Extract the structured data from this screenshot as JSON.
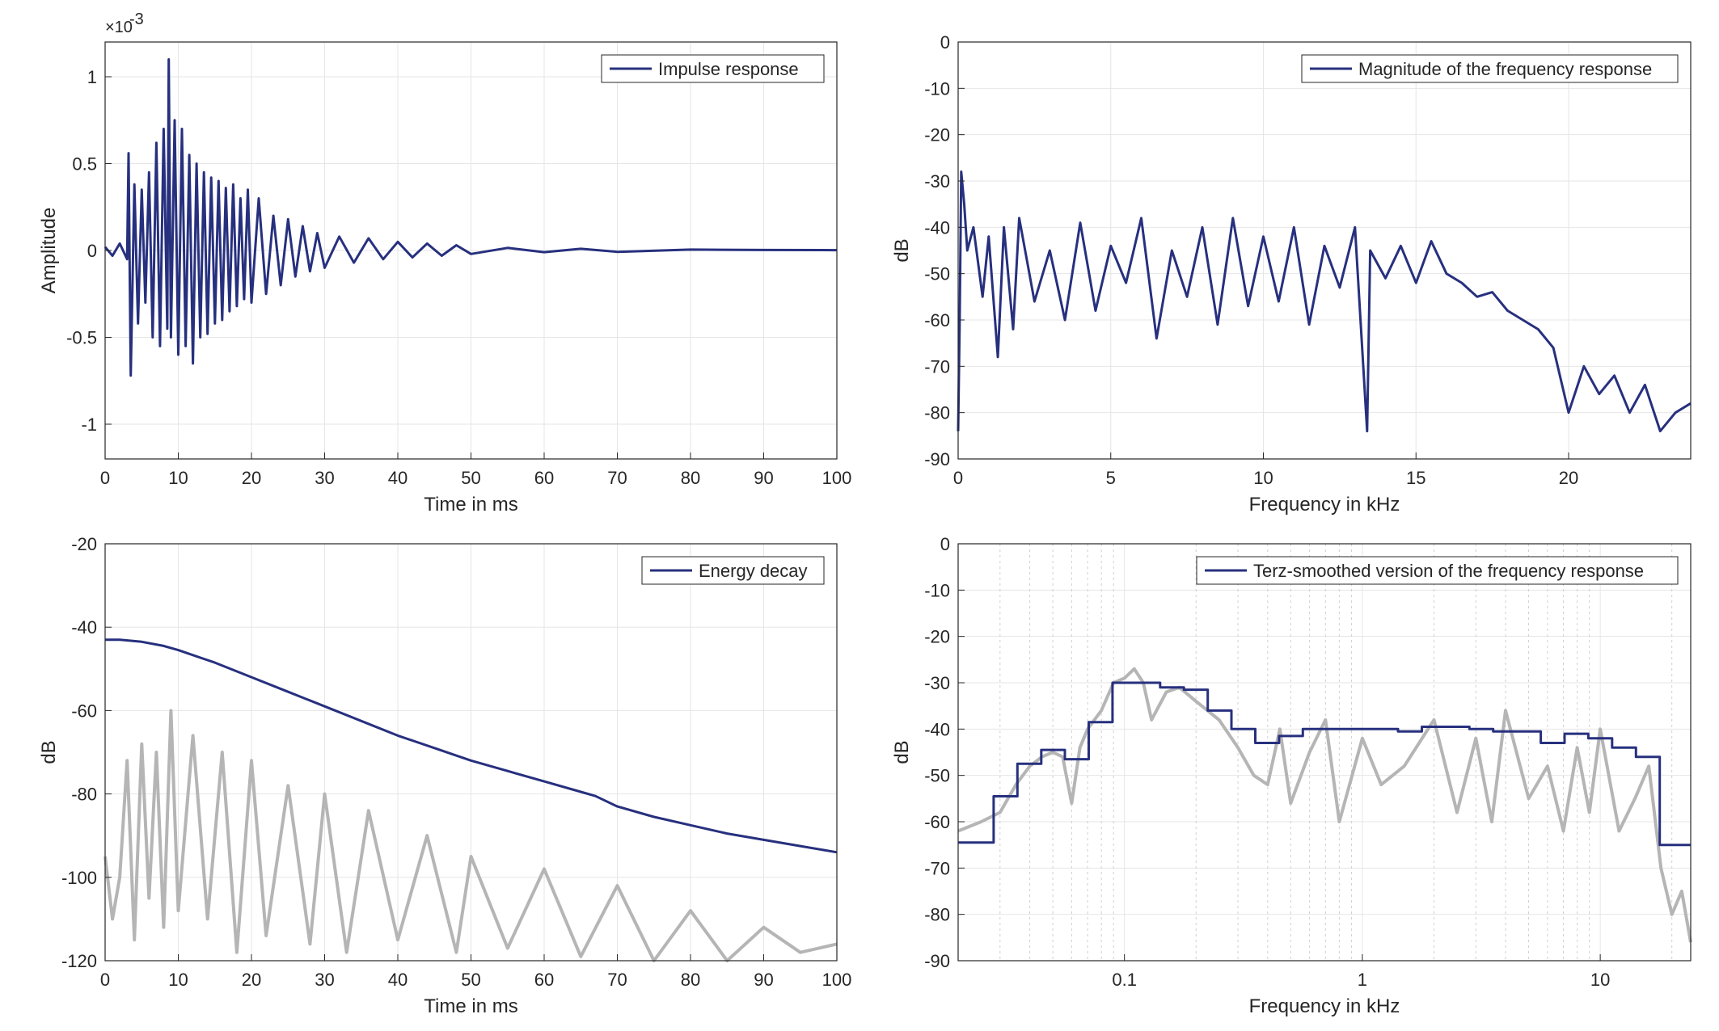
{
  "colors": {
    "series": "#27307e",
    "background_trace": "#b5b5b5",
    "grid": "#e6e6e6",
    "axis": "#262626"
  },
  "chart_data": [
    {
      "type": "line",
      "title": "",
      "xlabel": "Time in ms",
      "ylabel": "Amplitude",
      "exponent_label": "×10",
      "exponent_power": "-3",
      "xlim": [
        0,
        100
      ],
      "ylim": [
        -1.2,
        1.2
      ],
      "xticks": [
        0,
        10,
        20,
        30,
        40,
        50,
        60,
        70,
        80,
        90,
        100
      ],
      "xtick_labels": [
        "0",
        "10",
        "20",
        "30",
        "40",
        "50",
        "60",
        "70",
        "80",
        "90",
        "100"
      ],
      "yticks": [
        -1,
        -0.5,
        0,
        0.5,
        1
      ],
      "ytick_labels": [
        "-1",
        "-0.5",
        "0",
        "0.5",
        "1"
      ],
      "grid": true,
      "legend_position": "top-right",
      "series": [
        {
          "name": "Impulse response",
          "x": [
            0,
            1,
            2,
            3,
            3.2,
            3.5,
            4,
            4.5,
            5,
            5.5,
            6,
            6.5,
            7,
            7.5,
            8,
            8.5,
            8.7,
            9,
            9.5,
            10,
            10.5,
            11,
            11.5,
            12,
            12.5,
            13,
            13.5,
            14,
            14.5,
            15,
            15.5,
            16,
            16.5,
            17,
            17.5,
            18,
            18.5,
            19,
            19.5,
            20,
            21,
            22,
            23,
            24,
            25,
            26,
            27,
            28,
            29,
            30,
            32,
            34,
            36,
            38,
            40,
            42,
            44,
            46,
            48,
            50,
            55,
            60,
            65,
            70,
            80,
            90,
            100
          ],
          "y": [
            0.02,
            -0.03,
            0.04,
            -0.05,
            0.56,
            -0.72,
            0.38,
            -0.42,
            0.35,
            -0.3,
            0.45,
            -0.5,
            0.62,
            -0.55,
            0.7,
            -0.45,
            1.1,
            -0.5,
            0.75,
            -0.6,
            0.7,
            -0.55,
            0.55,
            -0.65,
            0.5,
            -0.5,
            0.45,
            -0.48,
            0.42,
            -0.42,
            0.4,
            -0.4,
            0.36,
            -0.35,
            0.38,
            -0.32,
            0.3,
            -0.28,
            0.35,
            -0.3,
            0.3,
            -0.25,
            0.2,
            -0.2,
            0.18,
            -0.15,
            0.14,
            -0.12,
            0.1,
            -0.1,
            0.08,
            -0.07,
            0.07,
            -0.05,
            0.05,
            -0.04,
            0.04,
            -0.03,
            0.03,
            -0.02,
            0.015,
            -0.01,
            0.01,
            -0.008,
            0.005,
            0.003,
            0.002
          ]
        }
      ]
    },
    {
      "type": "line",
      "title": "",
      "xlabel": "Frequency in kHz",
      "ylabel": "dB",
      "xlim": [
        0,
        24
      ],
      "ylim": [
        -90,
        0
      ],
      "xticks": [
        0,
        5,
        10,
        15,
        20
      ],
      "xtick_labels": [
        "0",
        "5",
        "10",
        "15",
        "20"
      ],
      "yticks": [
        0,
        -10,
        -20,
        -30,
        -40,
        -50,
        -60,
        -70,
        -80,
        -90
      ],
      "ytick_labels": [
        "0",
        "-10",
        "-20",
        "-30",
        "-40",
        "-50",
        "-60",
        "-70",
        "-80",
        "-90"
      ],
      "grid": true,
      "legend_position": "top-right",
      "series": [
        {
          "name": "Magnitude of the frequency response",
          "x": [
            0,
            0.05,
            0.1,
            0.2,
            0.3,
            0.5,
            0.8,
            1,
            1.3,
            1.5,
            1.8,
            2,
            2.5,
            3,
            3.5,
            4,
            4.5,
            5,
            5.5,
            6,
            6.5,
            7,
            7.5,
            8,
            8.5,
            9,
            9.5,
            10,
            10.5,
            11,
            11.5,
            12,
            12.5,
            13,
            13.4,
            13.5,
            14,
            14.5,
            15,
            15.5,
            16,
            16.5,
            17,
            17.5,
            18,
            18.5,
            19,
            19.5,
            20,
            20.5,
            21,
            21.5,
            22,
            22.5,
            23,
            23.5,
            24
          ],
          "y": [
            -84,
            -60,
            -28,
            -35,
            -45,
            -40,
            -55,
            -42,
            -68,
            -40,
            -62,
            -38,
            -56,
            -45,
            -60,
            -39,
            -58,
            -44,
            -52,
            -38,
            -64,
            -45,
            -55,
            -40,
            -61,
            -38,
            -57,
            -42,
            -56,
            -40,
            -61,
            -44,
            -53,
            -40,
            -84,
            -45,
            -51,
            -44,
            -52,
            -43,
            -50,
            -52,
            -55,
            -54,
            -58,
            -60,
            -62,
            -66,
            -80,
            -70,
            -76,
            -72,
            -80,
            -74,
            -84,
            -80,
            -78
          ]
        }
      ]
    },
    {
      "type": "line",
      "title": "",
      "xlabel": "Time in ms",
      "ylabel": "dB",
      "xlim": [
        0,
        100
      ],
      "ylim": [
        -120,
        -20
      ],
      "xticks": [
        0,
        10,
        20,
        30,
        40,
        50,
        60,
        70,
        80,
        90,
        100
      ],
      "xtick_labels": [
        "0",
        "10",
        "20",
        "30",
        "40",
        "50",
        "60",
        "70",
        "80",
        "90",
        "100"
      ],
      "yticks": [
        -20,
        -40,
        -60,
        -80,
        -100,
        -120
      ],
      "ytick_labels": [
        "-20",
        "-40",
        "-60",
        "-80",
        "-100",
        "-120"
      ],
      "grid": true,
      "legend_position": "top-right",
      "series": [
        {
          "name": "Energy decay",
          "x": [
            0,
            2,
            5,
            8,
            10,
            15,
            20,
            25,
            30,
            35,
            40,
            45,
            50,
            55,
            60,
            65,
            67,
            70,
            75,
            80,
            85,
            90,
            95,
            100
          ],
          "y": [
            -43,
            -43,
            -43.5,
            -44.5,
            -45.5,
            -48.5,
            -52,
            -55.5,
            -59,
            -62.5,
            -66,
            -69,
            -72,
            -74.5,
            -77,
            -79.5,
            -80.5,
            -83,
            -85.5,
            -87.5,
            -89.5,
            -91,
            -92.5,
            -94
          ]
        },
        {
          "name": "",
          "x": [
            0,
            1,
            2,
            3,
            4,
            5,
            6,
            7,
            8,
            9,
            10,
            12,
            14,
            16,
            18,
            20,
            22,
            25,
            28,
            30,
            33,
            36,
            40,
            44,
            48,
            50,
            55,
            60,
            65,
            70,
            75,
            80,
            85,
            90,
            95,
            100
          ],
          "y": [
            -95,
            -110,
            -100,
            -72,
            -115,
            -68,
            -105,
            -70,
            -112,
            -60,
            -108,
            -66,
            -110,
            -70,
            -118,
            -72,
            -114,
            -78,
            -116,
            -80,
            -118,
            -84,
            -115,
            -90,
            -118,
            -95,
            -117,
            -98,
            -119,
            -102,
            -120,
            -108,
            -120,
            -112,
            -118,
            -116
          ]
        }
      ]
    },
    {
      "type": "line",
      "title": "",
      "xlabel": "Frequency in kHz",
      "ylabel": "dB",
      "x_scale": "log",
      "xlim": [
        0.02,
        24
      ],
      "ylim": [
        -90,
        0
      ],
      "xticks": [
        0.1,
        1,
        10
      ],
      "xtick_labels": [
        "0.1",
        "1",
        "10"
      ],
      "yticks": [
        0,
        -10,
        -20,
        -30,
        -40,
        -50,
        -60,
        -70,
        -80,
        -90
      ],
      "ytick_labels": [
        "0",
        "-10",
        "-20",
        "-30",
        "-40",
        "-50",
        "-60",
        "-70",
        "-80",
        "-90"
      ],
      "grid": true,
      "legend_position": "top-right",
      "series": [
        {
          "name": "Terz-smoothed version of the frequency response",
          "step": true,
          "x": [
            0.02,
            0.0282,
            0.0355,
            0.0447,
            0.0562,
            0.0708,
            0.0891,
            0.1122,
            0.1413,
            0.1778,
            0.2239,
            0.2818,
            0.3548,
            0.4467,
            0.5623,
            0.7079,
            0.8913,
            1.122,
            1.4125,
            1.7783,
            2.2387,
            2.8184,
            3.5481,
            4.4668,
            5.6234,
            7.0795,
            8.9125,
            11.22,
            14.125,
            17.783,
            24
          ],
          "y": [
            -64.5,
            -54.5,
            -47.5,
            -44.5,
            -46.5,
            -38.5,
            -30,
            -30,
            -31,
            -31.5,
            -36,
            -40,
            -43,
            -41.5,
            -40,
            -40,
            -40,
            -40,
            -40.5,
            -39.5,
            -39.5,
            -40,
            -40.5,
            -40.5,
            -43,
            -41,
            -42,
            -44,
            -46,
            -65,
            -65
          ]
        },
        {
          "name": "",
          "x": [
            0.02,
            0.025,
            0.03,
            0.035,
            0.04,
            0.045,
            0.05,
            0.055,
            0.06,
            0.065,
            0.07,
            0.08,
            0.09,
            0.1,
            0.11,
            0.12,
            0.13,
            0.15,
            0.17,
            0.2,
            0.25,
            0.3,
            0.35,
            0.4,
            0.45,
            0.5,
            0.6,
            0.7,
            0.8,
            1,
            1.2,
            1.5,
            2,
            2.5,
            3,
            3.5,
            4,
            5,
            6,
            7,
            8,
            9,
            10,
            12,
            14,
            16,
            18,
            20,
            22,
            24
          ],
          "y": [
            -62,
            -60,
            -58,
            -52,
            -48,
            -46,
            -45,
            -46,
            -56,
            -44,
            -40,
            -36,
            -30,
            -29,
            -27,
            -30,
            -38,
            -32,
            -31,
            -34,
            -38,
            -44,
            -50,
            -52,
            -40,
            -56,
            -45,
            -38,
            -60,
            -42,
            -52,
            -48,
            -38,
            -58,
            -42,
            -60,
            -36,
            -55,
            -48,
            -62,
            -44,
            -58,
            -40,
            -62,
            -55,
            -48,
            -70,
            -80,
            -75,
            -86
          ]
        }
      ]
    }
  ]
}
